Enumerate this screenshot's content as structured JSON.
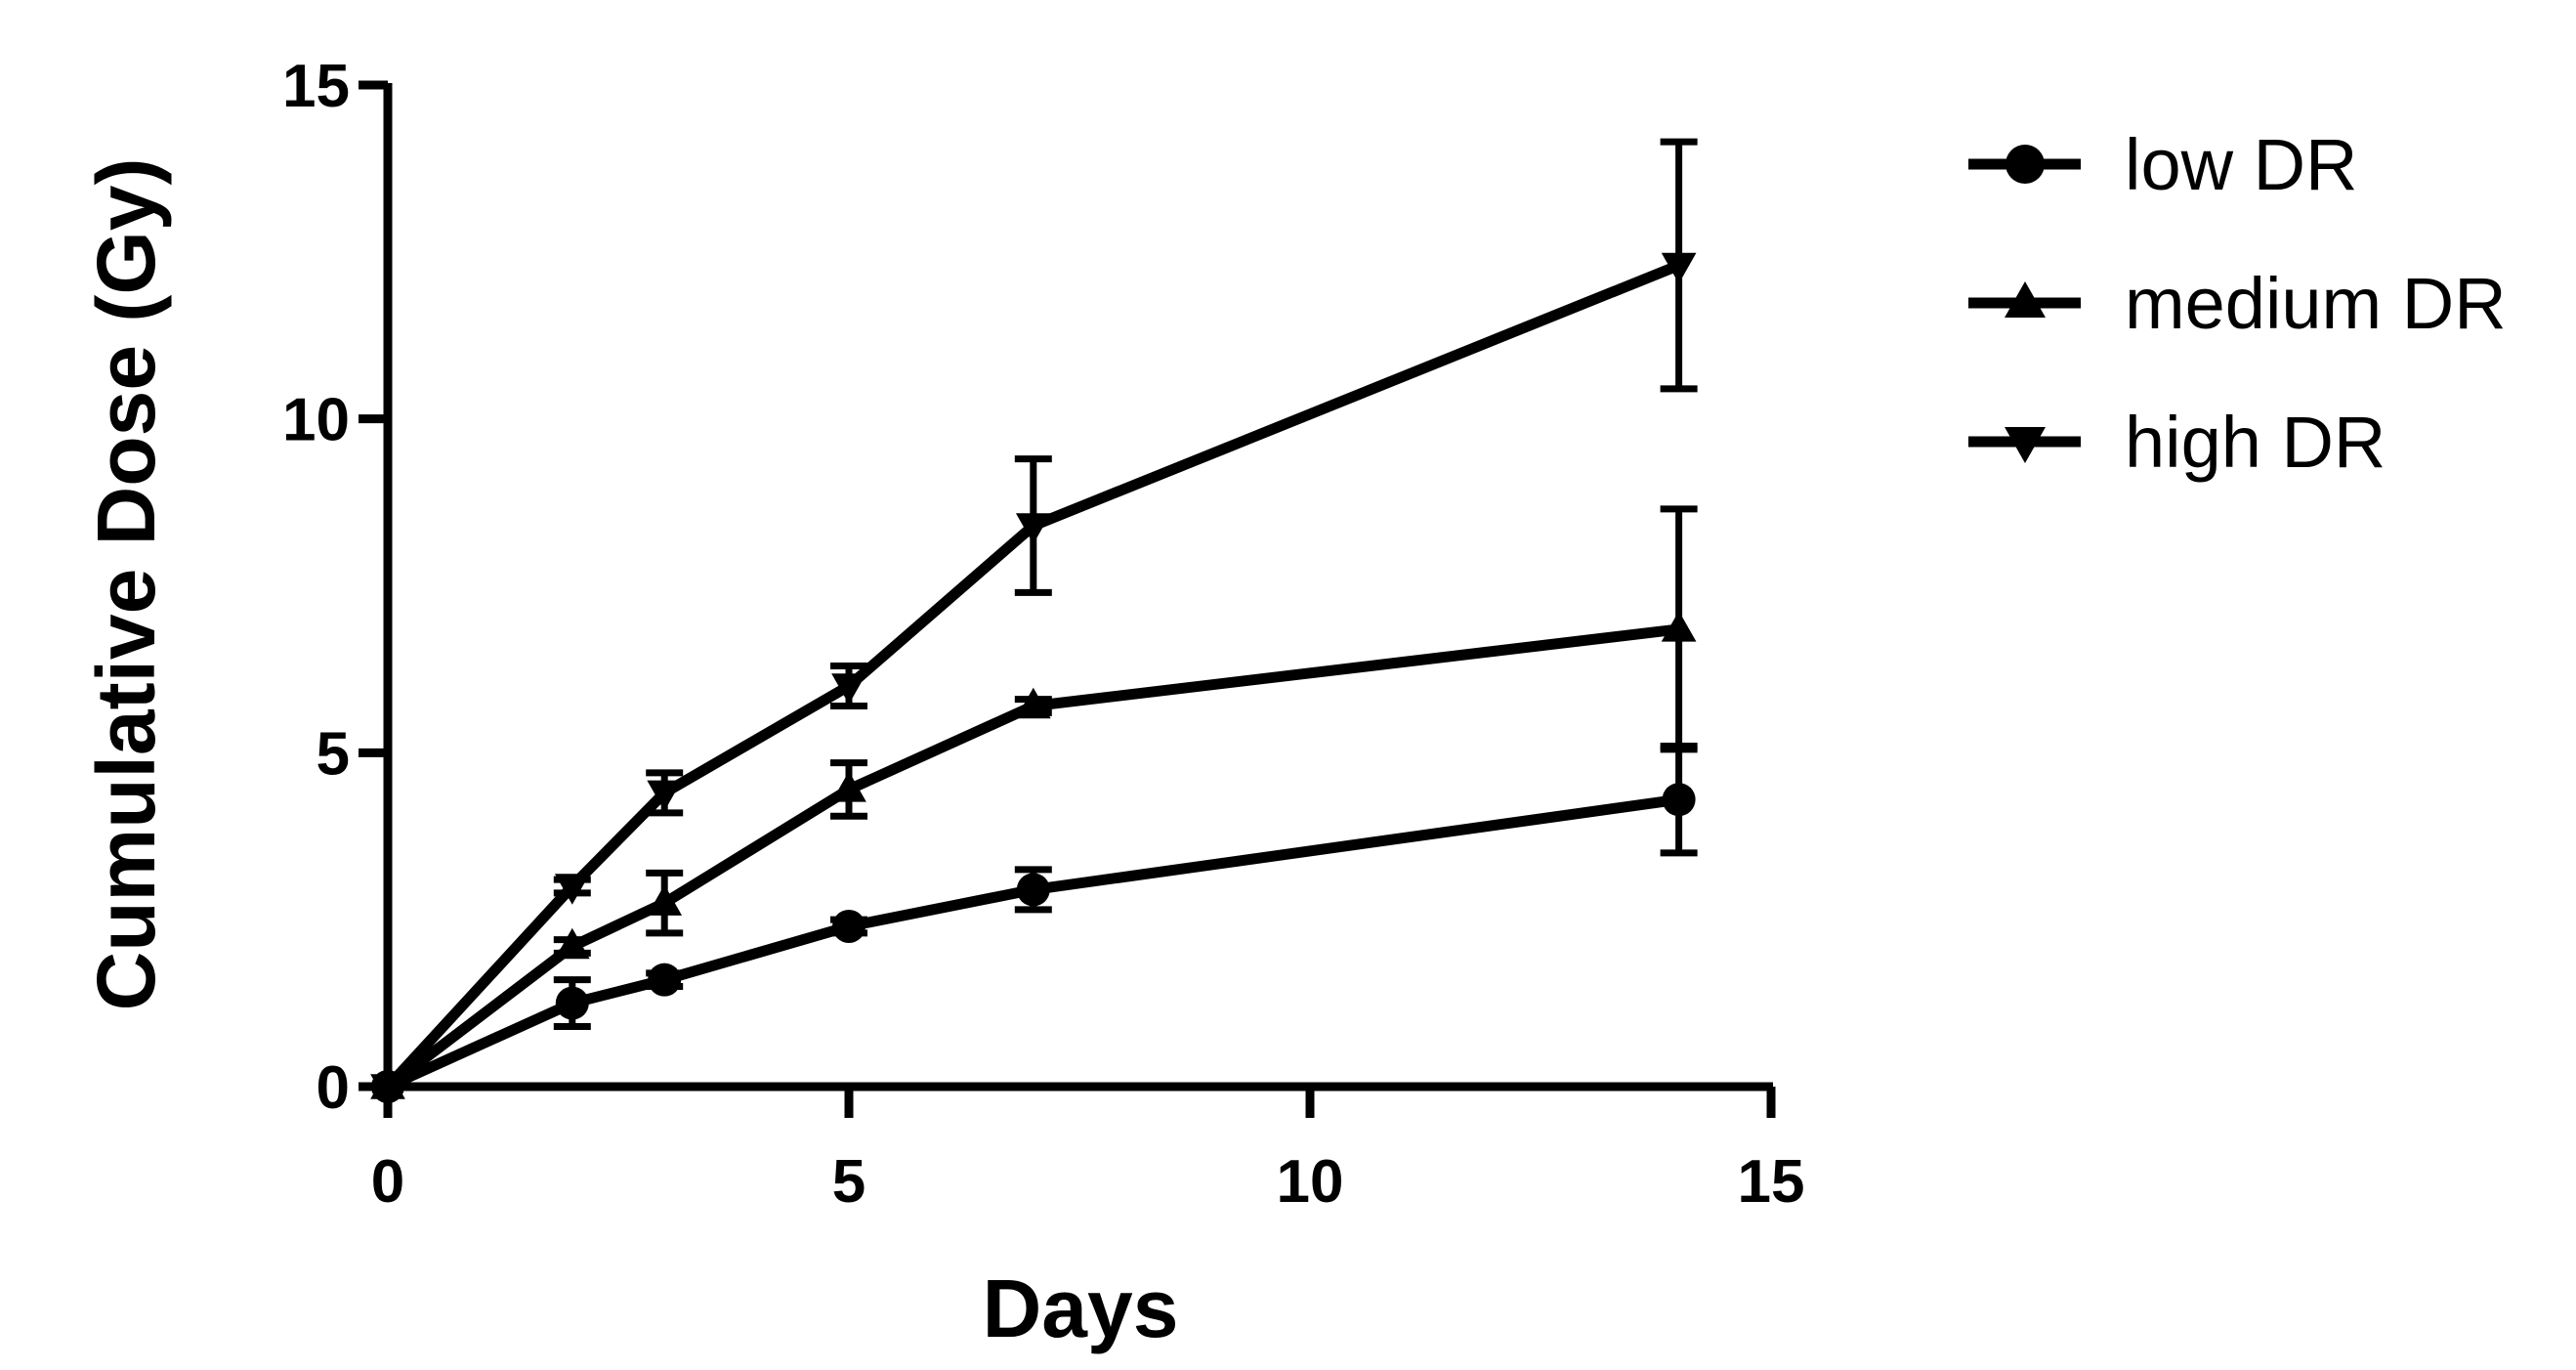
{
  "chart_data": {
    "type": "line",
    "xlabel": "Days",
    "ylabel": "Cumulative Dose (Gy)",
    "xlim": [
      0,
      15
    ],
    "ylim": [
      0,
      15
    ],
    "xticks": [
      "0",
      "5",
      "10",
      "15"
    ],
    "yticks": [
      "0",
      "5",
      "10",
      "15"
    ],
    "x": [
      0,
      2,
      3,
      5,
      7,
      14
    ],
    "series": [
      {
        "name": "low DR",
        "marker": "circle",
        "values": [
          0,
          1.25,
          1.6,
          2.4,
          2.95,
          4.3
        ],
        "errors": [
          0,
          0.35,
          0.1,
          0.1,
          0.3,
          0.8
        ]
      },
      {
        "name": "medium DR",
        "marker": "triangle-up",
        "values": [
          0,
          2.1,
          2.75,
          4.45,
          5.7,
          6.85
        ],
        "errors": [
          0,
          0.1,
          0.45,
          0.4,
          0.1,
          1.8
        ]
      },
      {
        "name": "high DR",
        "marker": "triangle-down",
        "values": [
          0,
          3.0,
          4.4,
          6.0,
          8.4,
          12.3
        ],
        "errors": [
          0,
          0.1,
          0.3,
          0.3,
          1.0,
          1.85
        ]
      }
    ],
    "legend_position": "right",
    "grid": false
  }
}
